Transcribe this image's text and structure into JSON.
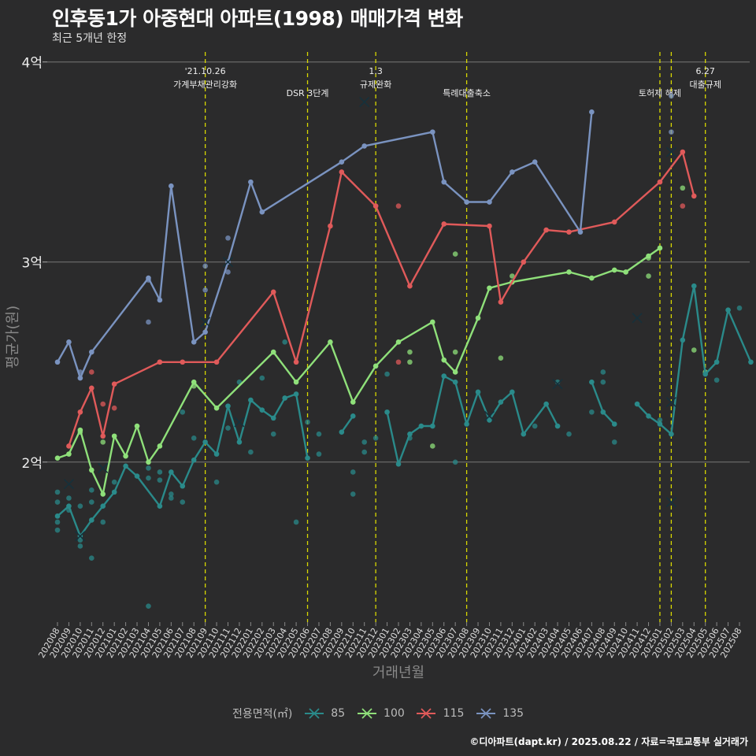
{
  "title": "인후동1가 아중현대 아파트(1998) 매매가격 변화",
  "subtitle": "최근 5개년 한정",
  "caption": "©디아파트(dapt.kr) / 2025.08.22 / 자료=국토교통부 실거래가",
  "legend": {
    "title": "전용면적(㎡)",
    "items": [
      {
        "label": "85",
        "color": "#2a8a8a"
      },
      {
        "label": "100",
        "color": "#8fe07a"
      },
      {
        "label": "115",
        "color": "#e05a5a"
      },
      {
        "label": "135",
        "color": "#7a93c0"
      }
    ]
  },
  "chart_data": {
    "type": "line",
    "xlabel": "거래년월",
    "ylabel": "평균가(원)",
    "categories": [
      "202008",
      "202009",
      "202010",
      "202011",
      "202012",
      "202101",
      "202102",
      "202103",
      "202104",
      "202105",
      "202106",
      "202107",
      "202108",
      "202109",
      "202110",
      "202111",
      "202112",
      "202201",
      "202202",
      "202203",
      "202204",
      "202205",
      "202206",
      "202207",
      "202208",
      "202209",
      "202210",
      "202211",
      "202212",
      "202301",
      "202302",
      "202303",
      "202304",
      "202305",
      "202306",
      "202307",
      "202308",
      "202309",
      "202310",
      "202311",
      "202312",
      "202401",
      "202402",
      "202403",
      "202404",
      "202405",
      "202406",
      "202407",
      "202408",
      "202409",
      "202410",
      "202411",
      "202412",
      "202501",
      "202502",
      "202503",
      "202504",
      "202505",
      "202506",
      "202507",
      "202508"
    ],
    "yticks": [
      {
        "value": 2.0,
        "label": "2억"
      },
      {
        "value": 3.0,
        "label": "3억"
      },
      {
        "value": 4.0,
        "label": "4억"
      }
    ],
    "ylim": [
      1.2,
      4.05
    ],
    "grid": true,
    "legend_position": "bottom",
    "series": [
      {
        "name": "85",
        "color": "#2a8a8a",
        "points": [
          [
            0,
            1.73
          ],
          [
            1,
            1.78
          ],
          [
            2,
            1.63
          ],
          [
            3,
            1.71
          ],
          [
            4,
            1.78
          ],
          [
            5,
            1.85
          ],
          [
            6,
            1.98
          ],
          [
            7,
            1.93
          ],
          [
            9,
            1.78
          ],
          [
            10,
            1.95
          ],
          [
            11,
            1.88
          ],
          [
            12,
            2.01
          ],
          [
            13,
            2.1
          ],
          [
            14,
            2.04
          ],
          [
            15,
            2.28
          ],
          [
            16,
            2.1
          ],
          [
            17,
            2.31
          ],
          [
            18,
            2.26
          ],
          [
            19,
            2.22
          ],
          [
            20,
            2.32
          ],
          [
            21,
            2.34
          ],
          [
            22,
            2.02
          ],
          [
            null,
            null
          ],
          [
            25,
            2.15
          ],
          [
            26,
            2.23
          ],
          [
            null,
            null
          ],
          [
            29,
            2.25
          ],
          [
            30,
            1.99
          ],
          [
            31,
            2.14
          ],
          [
            32,
            2.18
          ],
          [
            33,
            2.18
          ],
          [
            34,
            2.43
          ],
          [
            35,
            2.4
          ],
          [
            36,
            2.19
          ],
          [
            37,
            2.35
          ],
          [
            38,
            2.21
          ],
          [
            39,
            2.3
          ],
          [
            40,
            2.35
          ],
          [
            41,
            2.14
          ],
          [
            43,
            2.29
          ],
          [
            44,
            2.18
          ],
          [
            null,
            null
          ],
          [
            47,
            2.4
          ],
          [
            48,
            2.25
          ],
          [
            49,
            2.19
          ],
          [
            null,
            null
          ],
          [
            51,
            2.29
          ],
          [
            52,
            2.23
          ],
          [
            53,
            2.19
          ],
          [
            54,
            2.14
          ],
          [
            55,
            2.61
          ],
          [
            56,
            2.88
          ],
          [
            57,
            2.44
          ],
          [
            58,
            2.5
          ],
          [
            59,
            2.76
          ],
          [
            61,
            2.5
          ]
        ]
      },
      {
        "name": "100",
        "color": "#8fe07a",
        "points": [
          [
            0,
            2.02
          ],
          [
            1,
            2.04
          ],
          [
            2,
            2.16
          ],
          [
            3,
            1.96
          ],
          [
            4,
            1.84
          ],
          [
            5,
            2.13
          ],
          [
            6,
            2.03
          ],
          [
            7,
            2.18
          ],
          [
            8,
            2.0
          ],
          [
            9,
            2.08
          ],
          [
            12,
            2.4
          ],
          [
            14,
            2.27
          ],
          [
            19,
            2.55
          ],
          [
            21,
            2.4
          ],
          [
            24,
            2.6
          ],
          [
            26,
            2.3
          ],
          [
            28,
            2.48
          ],
          [
            30,
            2.6
          ],
          [
            33,
            2.7
          ],
          [
            34,
            2.51
          ],
          [
            35,
            2.45
          ],
          [
            37,
            2.72
          ],
          [
            38,
            2.87
          ],
          [
            40,
            2.9
          ],
          [
            45,
            2.95
          ],
          [
            47,
            2.92
          ],
          [
            49,
            2.96
          ],
          [
            50,
            2.95
          ],
          [
            52,
            3.03
          ],
          [
            53,
            3.07
          ]
        ]
      },
      {
        "name": "115",
        "color": "#e05a5a",
        "points": [
          [
            1,
            2.08
          ],
          [
            2,
            2.25
          ],
          [
            3,
            2.37
          ],
          [
            4,
            2.13
          ],
          [
            5,
            2.39
          ],
          [
            9,
            2.5
          ],
          [
            11,
            2.5
          ],
          [
            14,
            2.5
          ],
          [
            19,
            2.85
          ],
          [
            21,
            2.5
          ],
          [
            24,
            3.18
          ],
          [
            25,
            3.45
          ],
          [
            28,
            3.28
          ],
          [
            31,
            2.88
          ],
          [
            34,
            3.19
          ],
          [
            38,
            3.18
          ],
          [
            39,
            2.8
          ],
          [
            41,
            3.0
          ],
          [
            43,
            3.16
          ],
          [
            45,
            3.15
          ],
          [
            49,
            3.2
          ],
          [
            53,
            3.4
          ],
          [
            55,
            3.55
          ],
          [
            56,
            3.33
          ]
        ]
      },
      {
        "name": "135",
        "color": "#7a93c0",
        "points": [
          [
            0,
            2.5
          ],
          [
            1,
            2.6
          ],
          [
            2,
            2.42
          ],
          [
            3,
            2.55
          ],
          [
            8,
            2.92
          ],
          [
            9,
            2.81
          ],
          [
            10,
            3.38
          ],
          [
            12,
            2.6
          ],
          [
            13,
            2.65
          ],
          [
            15,
            3.0
          ],
          [
            17,
            3.4
          ],
          [
            18,
            3.25
          ],
          [
            25,
            3.5
          ],
          [
            27,
            3.58
          ],
          [
            33,
            3.65
          ],
          [
            34,
            3.4
          ],
          [
            36,
            3.3
          ],
          [
            38,
            3.3
          ],
          [
            40,
            3.45
          ],
          [
            42,
            3.5
          ],
          [
            46,
            3.15
          ],
          [
            47,
            3.75
          ]
        ]
      }
    ],
    "extra_points": [
      {
        "series": "85",
        "x": 0,
        "y": 1.66
      },
      {
        "series": "85",
        "x": 0,
        "y": 1.7
      },
      {
        "series": "85",
        "x": 0,
        "y": 1.8
      },
      {
        "series": "85",
        "x": 0,
        "y": 1.85
      },
      {
        "series": "85",
        "x": 1,
        "y": 1.82
      },
      {
        "series": "85",
        "x": 1,
        "y": 1.76
      },
      {
        "series": "85",
        "x": 2,
        "y": 1.58
      },
      {
        "series": "85",
        "x": 2,
        "y": 1.78
      },
      {
        "series": "85",
        "x": 2,
        "y": 1.61
      },
      {
        "series": "85",
        "x": 3,
        "y": 1.52
      },
      {
        "series": "85",
        "x": 3,
        "y": 1.8
      },
      {
        "series": "85",
        "x": 3,
        "y": 1.86
      },
      {
        "series": "85",
        "x": 4,
        "y": 1.7
      },
      {
        "series": "85",
        "x": 5,
        "y": 1.9
      },
      {
        "series": "85",
        "x": 8,
        "y": 1.28
      },
      {
        "series": "85",
        "x": 8,
        "y": 1.92
      },
      {
        "series": "85",
        "x": 8,
        "y": 1.97
      },
      {
        "series": "85",
        "x": 9,
        "y": 1.95
      },
      {
        "series": "85",
        "x": 9,
        "y": 1.91
      },
      {
        "series": "85",
        "x": 10,
        "y": 1.84
      },
      {
        "series": "85",
        "x": 10,
        "y": 1.82
      },
      {
        "series": "85",
        "x": 11,
        "y": 1.8
      },
      {
        "series": "85",
        "x": 11,
        "y": 2.25
      },
      {
        "series": "85",
        "x": 12,
        "y": 2.12
      },
      {
        "series": "85",
        "x": 14,
        "y": 1.9
      },
      {
        "series": "85",
        "x": 15,
        "y": 2.17
      },
      {
        "series": "85",
        "x": 16,
        "y": 2.4
      },
      {
        "series": "85",
        "x": 17,
        "y": 2.05
      },
      {
        "series": "85",
        "x": 18,
        "y": 2.42
      },
      {
        "series": "85",
        "x": 19,
        "y": 2.14
      },
      {
        "series": "85",
        "x": 20,
        "y": 2.6
      },
      {
        "series": "85",
        "x": 21,
        "y": 1.7
      },
      {
        "series": "85",
        "x": 22,
        "y": 2.2
      },
      {
        "series": "85",
        "x": 23,
        "y": 2.04
      },
      {
        "series": "85",
        "x": 23,
        "y": 2.14
      },
      {
        "series": "85",
        "x": 26,
        "y": 1.95
      },
      {
        "series": "85",
        "x": 26,
        "y": 1.84
      },
      {
        "series": "85",
        "x": 27,
        "y": 2.1
      },
      {
        "series": "85",
        "x": 27,
        "y": 2.05
      },
      {
        "series": "85",
        "x": 28,
        "y": 2.12
      },
      {
        "series": "85",
        "x": 29,
        "y": 2.44
      },
      {
        "series": "85",
        "x": 31,
        "y": 2.12
      },
      {
        "series": "85",
        "x": 35,
        "y": 2.0
      },
      {
        "series": "85",
        "x": 42,
        "y": 2.18
      },
      {
        "series": "85",
        "x": 44,
        "y": 2.4
      },
      {
        "series": "85",
        "x": 45,
        "y": 2.14
      },
      {
        "series": "85",
        "x": 47,
        "y": 2.25
      },
      {
        "series": "85",
        "x": 48,
        "y": 2.45
      },
      {
        "series": "85",
        "x": 48,
        "y": 2.4
      },
      {
        "series": "85",
        "x": 49,
        "y": 2.1
      },
      {
        "series": "85",
        "x": 53,
        "y": 2.21
      },
      {
        "series": "85",
        "x": 58,
        "y": 2.41
      },
      {
        "series": "85",
        "x": 60,
        "y": 2.77
      },
      {
        "series": "100",
        "x": 2,
        "y": 2.15
      },
      {
        "series": "100",
        "x": 4,
        "y": 2.1
      },
      {
        "series": "100",
        "x": 12,
        "y": 2.38
      },
      {
        "series": "100",
        "x": 31,
        "y": 2.55
      },
      {
        "series": "100",
        "x": 31,
        "y": 2.5
      },
      {
        "series": "100",
        "x": 33,
        "y": 2.08
      },
      {
        "series": "100",
        "x": 35,
        "y": 3.04
      },
      {
        "series": "100",
        "x": 35,
        "y": 2.55
      },
      {
        "series": "100",
        "x": 39,
        "y": 2.52
      },
      {
        "series": "100",
        "x": 40,
        "y": 2.93
      },
      {
        "series": "100",
        "x": 52,
        "y": 2.93
      },
      {
        "series": "100",
        "x": 52,
        "y": 3.02
      },
      {
        "series": "100",
        "x": 55,
        "y": 3.37
      },
      {
        "series": "100",
        "x": 56,
        "y": 2.56
      },
      {
        "series": "100",
        "x": 57,
        "y": 2.45
      },
      {
        "series": "115",
        "x": 3,
        "y": 2.45
      },
      {
        "series": "115",
        "x": 4,
        "y": 2.29
      },
      {
        "series": "115",
        "x": 5,
        "y": 2.27
      },
      {
        "series": "115",
        "x": 9,
        "y": 2.5
      },
      {
        "series": "115",
        "x": 30,
        "y": 3.28
      },
      {
        "series": "115",
        "x": 30,
        "y": 2.5
      },
      {
        "series": "115",
        "x": 55,
        "y": 3.28
      },
      {
        "series": "135",
        "x": 2,
        "y": 2.45
      },
      {
        "series": "135",
        "x": 8,
        "y": 2.91
      },
      {
        "series": "135",
        "x": 8,
        "y": 2.7
      },
      {
        "series": "135",
        "x": 13,
        "y": 2.98
      },
      {
        "series": "135",
        "x": 13,
        "y": 2.86
      },
      {
        "series": "135",
        "x": 15,
        "y": 3.12
      },
      {
        "series": "135",
        "x": 15,
        "y": 2.95
      },
      {
        "series": "135",
        "x": 54,
        "y": 3.65
      },
      {
        "series": "135",
        "x": 54,
        "y": 3.83
      }
    ],
    "cross_markers": [
      {
        "series": "85",
        "x": 1,
        "y": 1.89
      },
      {
        "series": "85",
        "x": 2,
        "y": 1.63
      },
      {
        "series": "100",
        "x": 4,
        "y": 1.97
      },
      {
        "series": "135",
        "x": 13,
        "y": 2.7
      },
      {
        "series": "85",
        "x": 16,
        "y": 2.2
      },
      {
        "series": "135",
        "x": 15,
        "y": 3.0
      },
      {
        "series": "135",
        "x": 27,
        "y": 3.8
      },
      {
        "series": "85",
        "x": 38,
        "y": 2.23
      },
      {
        "series": "85",
        "x": 44,
        "y": 2.39
      },
      {
        "series": "85",
        "x": 51,
        "y": 2.72
      },
      {
        "series": "100",
        "x": 54,
        "y": 2.3
      },
      {
        "series": "85",
        "x": 54,
        "y": 1.8
      },
      {
        "series": "115",
        "x": 54,
        "y": 3.55
      }
    ],
    "annotations": [
      {
        "x": 13,
        "lines": [
          "'21.10.26",
          "가계부채관리강화"
        ]
      },
      {
        "x": 22,
        "lines": [
          "DSR 3단계"
        ]
      },
      {
        "x": 28,
        "lines": [
          "1.3",
          "규제완화"
        ]
      },
      {
        "x": 36,
        "lines": [
          "특례대출축소"
        ]
      },
      {
        "x": 53,
        "lines": [
          "토허제 해제"
        ]
      },
      {
        "x": 54,
        "lines": []
      },
      {
        "x": 57,
        "lines": [
          "6.27",
          "대출규제"
        ]
      }
    ]
  }
}
